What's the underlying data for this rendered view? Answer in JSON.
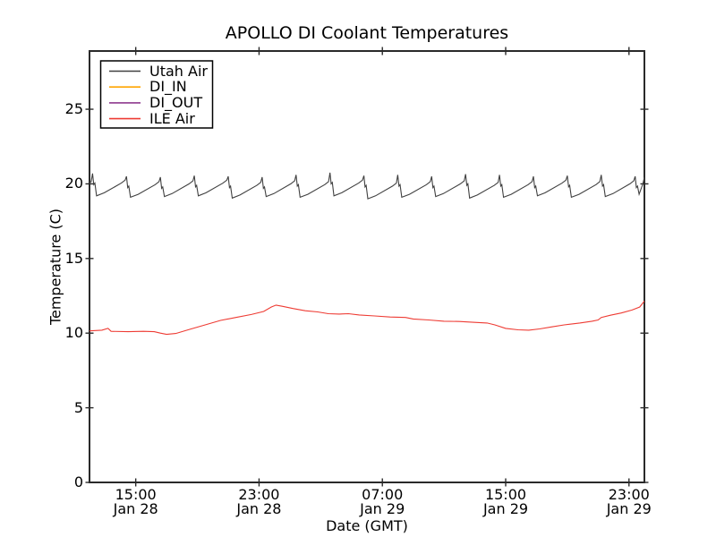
{
  "figure": {
    "title": "APOLLO DI Coolant Temperatures",
    "xlabel": "Date (GMT)",
    "ylabel": "Temperature (C)"
  },
  "chart_data": {
    "type": "line",
    "title": "APOLLO DI Coolant Temperatures",
    "xlabel": "Date (GMT)",
    "ylabel": "Temperature (C)",
    "x_unit": "hours after Jan 28 12:00 GMT",
    "xlim": [
      0,
      36
    ],
    "ylim": [
      0,
      28.9
    ],
    "grid": false,
    "legend_position": "upper left",
    "frame_color": "#2a2a2a",
    "y_ticks": [
      {
        "value": 0,
        "label": "0"
      },
      {
        "value": 5,
        "label": "5"
      },
      {
        "value": 10,
        "label": "10"
      },
      {
        "value": 15,
        "label": "15"
      },
      {
        "value": 20,
        "label": "20"
      },
      {
        "value": 25,
        "label": "25"
      }
    ],
    "x_ticks": [
      {
        "t": 3,
        "time": "15:00",
        "date": "Jan 28"
      },
      {
        "t": 11,
        "time": "23:00",
        "date": "Jan 28"
      },
      {
        "t": 19,
        "time": "07:00",
        "date": "Jan 29"
      },
      {
        "t": 27,
        "time": "15:00",
        "date": "Jan 29"
      },
      {
        "t": 35,
        "time": "23:00",
        "date": "Jan 29"
      }
    ],
    "series": [
      {
        "name": "Utah Air",
        "color": "#404040",
        "points": [
          [
            -1.74,
            19.1
          ],
          [
            -1.24,
            19.3
          ],
          [
            -0.14,
            19.95
          ],
          [
            0.11,
            20.15
          ],
          [
            0.2,
            20.7
          ],
          [
            0.28,
            19.95
          ],
          [
            0.35,
            20.05
          ],
          [
            0.46,
            19.2
          ],
          [
            0.96,
            19.4
          ],
          [
            2.06,
            20.05
          ],
          [
            2.31,
            20.25
          ],
          [
            2.4,
            20.5
          ],
          [
            2.48,
            19.75
          ],
          [
            2.55,
            19.85
          ],
          [
            2.66,
            19.1
          ],
          [
            3.16,
            19.3
          ],
          [
            4.26,
            19.95
          ],
          [
            4.51,
            20.15
          ],
          [
            4.6,
            20.45
          ],
          [
            4.68,
            19.7
          ],
          [
            4.75,
            19.8
          ],
          [
            4.86,
            19.15
          ],
          [
            5.36,
            19.35
          ],
          [
            6.46,
            20.0
          ],
          [
            6.71,
            20.2
          ],
          [
            6.8,
            20.55
          ],
          [
            6.88,
            19.8
          ],
          [
            6.95,
            19.9
          ],
          [
            7.06,
            19.2
          ],
          [
            7.56,
            19.4
          ],
          [
            8.66,
            20.05
          ],
          [
            8.91,
            20.25
          ],
          [
            9.0,
            20.5
          ],
          [
            9.08,
            19.75
          ],
          [
            9.15,
            19.85
          ],
          [
            9.26,
            19.05
          ],
          [
            9.76,
            19.25
          ],
          [
            10.86,
            19.9
          ],
          [
            11.11,
            20.1
          ],
          [
            11.2,
            20.45
          ],
          [
            11.28,
            19.7
          ],
          [
            11.35,
            19.8
          ],
          [
            11.46,
            19.15
          ],
          [
            11.96,
            19.35
          ],
          [
            13.06,
            20.0
          ],
          [
            13.31,
            20.2
          ],
          [
            13.4,
            20.6
          ],
          [
            13.48,
            19.85
          ],
          [
            13.55,
            19.95
          ],
          [
            13.66,
            19.1
          ],
          [
            14.16,
            19.3
          ],
          [
            15.26,
            19.95
          ],
          [
            15.51,
            20.15
          ],
          [
            15.6,
            20.75
          ],
          [
            15.68,
            20.0
          ],
          [
            15.75,
            20.1
          ],
          [
            15.86,
            19.2
          ],
          [
            16.36,
            19.4
          ],
          [
            17.46,
            20.05
          ],
          [
            17.71,
            20.25
          ],
          [
            17.8,
            20.55
          ],
          [
            17.88,
            19.8
          ],
          [
            17.95,
            19.9
          ],
          [
            18.06,
            19.0
          ],
          [
            18.56,
            19.2
          ],
          [
            19.66,
            19.85
          ],
          [
            19.91,
            20.05
          ],
          [
            20.0,
            20.6
          ],
          [
            20.08,
            19.85
          ],
          [
            20.15,
            19.95
          ],
          [
            20.26,
            19.1
          ],
          [
            20.76,
            19.3
          ],
          [
            21.86,
            19.95
          ],
          [
            22.11,
            20.15
          ],
          [
            22.2,
            20.5
          ],
          [
            22.28,
            19.75
          ],
          [
            22.35,
            19.85
          ],
          [
            22.46,
            19.15
          ],
          [
            22.96,
            19.35
          ],
          [
            24.06,
            20.0
          ],
          [
            24.31,
            20.2
          ],
          [
            24.4,
            20.65
          ],
          [
            24.48,
            19.9
          ],
          [
            24.55,
            20.0
          ],
          [
            24.66,
            19.05
          ],
          [
            25.16,
            19.25
          ],
          [
            26.26,
            19.9
          ],
          [
            26.51,
            20.1
          ],
          [
            26.6,
            20.6
          ],
          [
            26.68,
            19.85
          ],
          [
            26.75,
            19.95
          ],
          [
            26.86,
            19.1
          ],
          [
            27.36,
            19.3
          ],
          [
            28.46,
            19.95
          ],
          [
            28.71,
            20.15
          ],
          [
            28.8,
            20.5
          ],
          [
            28.88,
            19.75
          ],
          [
            28.95,
            19.85
          ],
          [
            29.06,
            19.2
          ],
          [
            29.56,
            19.4
          ],
          [
            30.66,
            20.05
          ],
          [
            30.91,
            20.25
          ],
          [
            31.0,
            20.55
          ],
          [
            31.08,
            19.8
          ],
          [
            31.15,
            19.9
          ],
          [
            31.26,
            19.1
          ],
          [
            31.76,
            19.3
          ],
          [
            32.86,
            19.95
          ],
          [
            33.11,
            20.15
          ],
          [
            33.2,
            20.6
          ],
          [
            33.28,
            19.85
          ],
          [
            33.35,
            19.95
          ],
          [
            33.46,
            19.15
          ],
          [
            33.96,
            19.35
          ],
          [
            35.06,
            20.0
          ],
          [
            35.31,
            20.2
          ],
          [
            35.4,
            20.5
          ],
          [
            35.48,
            19.75
          ],
          [
            35.55,
            19.85
          ],
          [
            35.66,
            19.3
          ],
          [
            35.9,
            20.0
          ],
          [
            36.0,
            20.45
          ]
        ]
      },
      {
        "name": "DI_IN",
        "color": "#ffa500",
        "points": []
      },
      {
        "name": "DI_OUT",
        "color": "#8e3a8e",
        "points": []
      },
      {
        "name": "ILE Air",
        "color": "#ee3b33",
        "points": [
          [
            0.0,
            10.15
          ],
          [
            0.8,
            10.2
          ],
          [
            1.2,
            10.32
          ],
          [
            1.4,
            10.12
          ],
          [
            2.5,
            10.1
          ],
          [
            3.5,
            10.12
          ],
          [
            4.2,
            10.1
          ],
          [
            4.6,
            10.0
          ],
          [
            5.0,
            9.92
          ],
          [
            5.6,
            9.98
          ],
          [
            6.5,
            10.25
          ],
          [
            7.5,
            10.55
          ],
          [
            8.5,
            10.85
          ],
          [
            9.5,
            11.05
          ],
          [
            10.5,
            11.25
          ],
          [
            11.3,
            11.45
          ],
          [
            11.8,
            11.75
          ],
          [
            12.1,
            11.88
          ],
          [
            12.5,
            11.8
          ],
          [
            13.2,
            11.65
          ],
          [
            14.0,
            11.5
          ],
          [
            14.8,
            11.42
          ],
          [
            15.5,
            11.3
          ],
          [
            16.2,
            11.28
          ],
          [
            16.8,
            11.3
          ],
          [
            17.5,
            11.22
          ],
          [
            18.5,
            11.15
          ],
          [
            19.5,
            11.08
          ],
          [
            20.5,
            11.05
          ],
          [
            21.0,
            10.95
          ],
          [
            22.0,
            10.88
          ],
          [
            23.0,
            10.8
          ],
          [
            24.0,
            10.78
          ],
          [
            25.0,
            10.72
          ],
          [
            25.8,
            10.68
          ],
          [
            26.3,
            10.55
          ],
          [
            27.0,
            10.32
          ],
          [
            27.8,
            10.22
          ],
          [
            28.5,
            10.2
          ],
          [
            29.2,
            10.28
          ],
          [
            30.0,
            10.42
          ],
          [
            30.8,
            10.55
          ],
          [
            31.8,
            10.68
          ],
          [
            32.6,
            10.8
          ],
          [
            33.0,
            10.88
          ],
          [
            33.2,
            11.05
          ],
          [
            33.8,
            11.2
          ],
          [
            34.5,
            11.35
          ],
          [
            35.2,
            11.55
          ],
          [
            35.7,
            11.75
          ],
          [
            36.0,
            12.15
          ]
        ]
      }
    ]
  }
}
